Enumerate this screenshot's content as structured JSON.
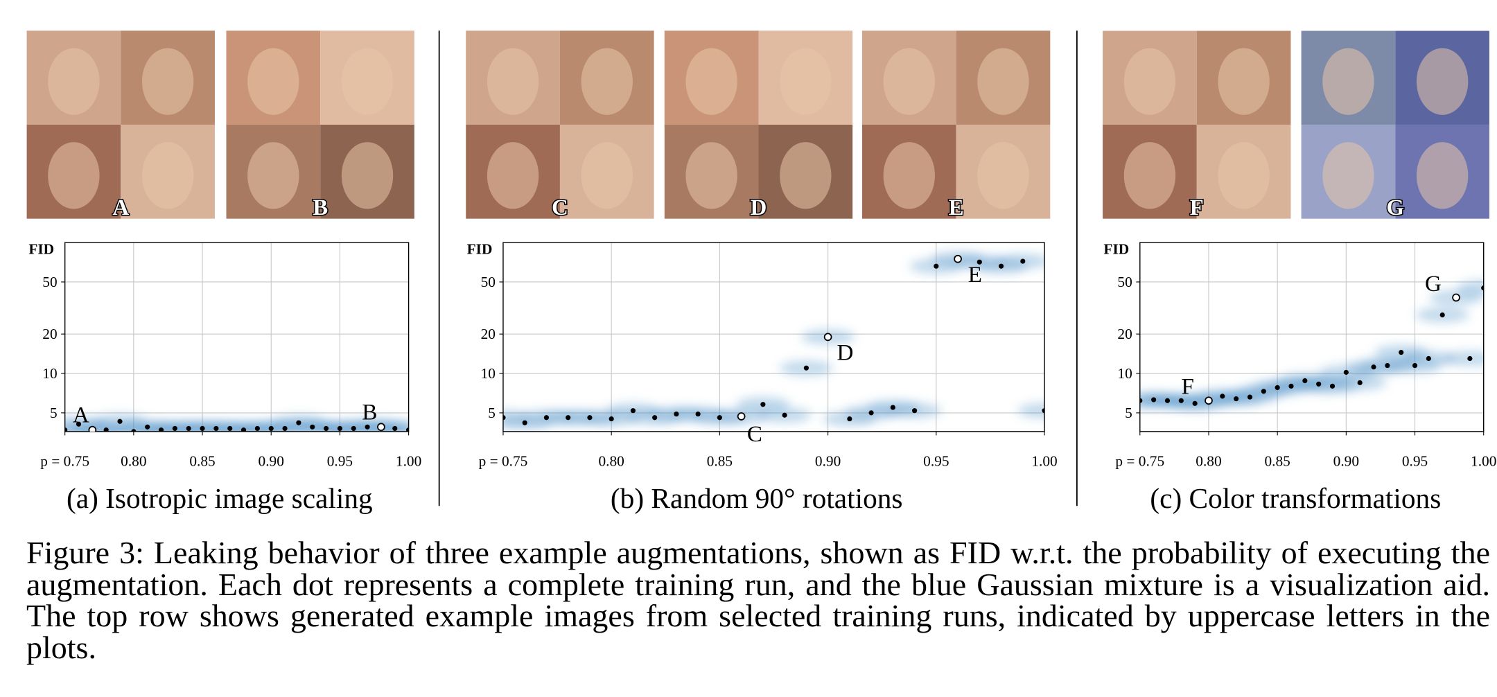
{
  "chart_data": [
    {
      "type": "scatter",
      "title": "(a) Isotropic image scaling",
      "ylabel": "FID",
      "log_y": true,
      "grid": true,
      "xlim": [
        0.75,
        1.0
      ],
      "ylim": [
        3.6,
        100
      ],
      "xticks": [
        {
          "value": 0.75,
          "label": "p = 0.75"
        },
        {
          "value": 0.8,
          "label": "0.80"
        },
        {
          "value": 0.85,
          "label": "0.85"
        },
        {
          "value": 0.9,
          "label": "0.90"
        },
        {
          "value": 0.95,
          "label": "0.95"
        },
        {
          "value": 1.0,
          "label": "1.00"
        }
      ],
      "yticks": [
        5,
        10,
        20,
        50
      ],
      "series": [
        {
          "color": "#000000",
          "x": [
            0.75,
            0.76,
            0.78,
            0.79,
            0.8,
            0.81,
            0.82,
            0.83,
            0.84,
            0.85,
            0.86,
            0.87,
            0.88,
            0.89,
            0.9,
            0.91,
            0.92,
            0.93,
            0.94,
            0.95,
            0.96,
            0.97,
            0.99,
            1.0
          ],
          "values": [
            3.7,
            4.1,
            3.7,
            4.3,
            3.6,
            3.9,
            3.7,
            3.8,
            3.8,
            3.8,
            3.8,
            3.8,
            3.7,
            3.8,
            3.8,
            3.8,
            4.2,
            3.9,
            3.8,
            3.8,
            3.8,
            3.9,
            3.8,
            3.7
          ]
        },
        {
          "color": "#ffffff",
          "x": [
            0.77,
            0.98
          ],
          "values": [
            3.7,
            3.9
          ],
          "labels": [
            "A",
            "B"
          ]
        }
      ]
    },
    {
      "type": "scatter",
      "title": "(b) Random 90° rotations",
      "ylabel": "FID",
      "log_y": true,
      "grid": true,
      "xlim": [
        0.75,
        1.0
      ],
      "ylim": [
        3.6,
        100
      ],
      "xticks": [
        {
          "value": 0.75,
          "label": "p = 0.75"
        },
        {
          "value": 0.8,
          "label": "0.80"
        },
        {
          "value": 0.85,
          "label": "0.85"
        },
        {
          "value": 0.9,
          "label": "0.90"
        },
        {
          "value": 0.95,
          "label": "0.95"
        },
        {
          "value": 1.0,
          "label": "1.00"
        }
      ],
      "yticks": [
        5,
        10,
        20,
        50
      ],
      "series": [
        {
          "color": "#000000",
          "x": [
            0.75,
            0.76,
            0.77,
            0.78,
            0.79,
            0.8,
            0.81,
            0.82,
            0.83,
            0.84,
            0.85,
            0.87,
            0.88,
            0.89,
            0.91,
            0.92,
            0.93,
            0.94,
            0.95,
            0.97,
            0.98,
            0.99,
            1.0
          ],
          "values": [
            4.6,
            4.2,
            4.6,
            4.6,
            4.6,
            4.5,
            5.2,
            4.6,
            4.9,
            4.9,
            4.6,
            5.8,
            4.8,
            11,
            4.5,
            5.0,
            5.5,
            5.2,
            66,
            71,
            66,
            72,
            5.2
          ]
        },
        {
          "color": "#ffffff",
          "x": [
            0.86,
            0.9,
            0.96
          ],
          "values": [
            4.7,
            19,
            75
          ],
          "labels": [
            "C",
            "D",
            "E"
          ]
        }
      ]
    },
    {
      "type": "scatter",
      "title": "(c) Color transformations",
      "ylabel": "FID",
      "log_y": true,
      "grid": true,
      "xlim": [
        0.75,
        1.0
      ],
      "ylim": [
        3.6,
        100
      ],
      "xticks": [
        {
          "value": 0.75,
          "label": "p = 0.75"
        },
        {
          "value": 0.8,
          "label": "0.80"
        },
        {
          "value": 0.85,
          "label": "0.85"
        },
        {
          "value": 0.9,
          "label": "0.90"
        },
        {
          "value": 0.95,
          "label": "0.95"
        },
        {
          "value": 1.0,
          "label": "1.00"
        }
      ],
      "yticks": [
        5,
        10,
        20,
        50
      ],
      "series": [
        {
          "color": "#000000",
          "x": [
            0.75,
            0.76,
            0.77,
            0.78,
            0.79,
            0.81,
            0.82,
            0.83,
            0.84,
            0.85,
            0.86,
            0.87,
            0.88,
            0.89,
            0.9,
            0.91,
            0.92,
            0.93,
            0.94,
            0.95,
            0.96,
            0.97,
            0.99,
            1.0
          ],
          "values": [
            6.2,
            6.3,
            6.2,
            6.2,
            5.9,
            6.7,
            6.4,
            6.6,
            7.3,
            7.8,
            8.0,
            8.8,
            8.3,
            8.0,
            10.2,
            8.5,
            11.2,
            11.5,
            14.5,
            11.5,
            13,
            28,
            13,
            45
          ]
        },
        {
          "color": "#ffffff",
          "x": [
            0.8,
            0.98
          ],
          "values": [
            6.2,
            38
          ],
          "labels": [
            "F",
            "G"
          ]
        }
      ]
    }
  ],
  "caption": "Figure 3: Leaking behavior of three example augmentations, shown as FID w.r.t. the probability of executing the augmentation. Each dot represents a complete training run, and the blue Gaussian mixture is a visualization aid. The top row shows generated example images from selected training runs, indicated by uppercase letters in the plots."
}
